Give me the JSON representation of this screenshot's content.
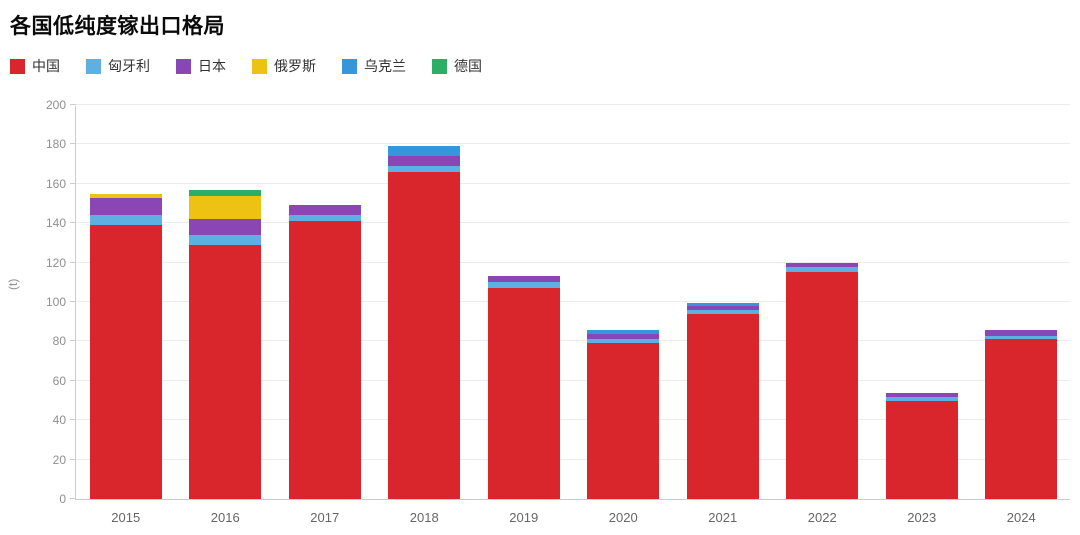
{
  "header": {
    "title": "各国低纯度镓出口格局"
  },
  "chart_data": {
    "type": "bar",
    "stacked": true,
    "title": "各国低纯度镓出口格局",
    "xlabel": "",
    "ylabel": "(t)",
    "ylim": [
      0,
      200
    ],
    "ytick_step": 20,
    "ytick_labels": [
      "0",
      "20",
      "40",
      "60",
      "80",
      "100",
      "120",
      "140",
      "160",
      "180",
      "200"
    ],
    "grid": true,
    "legend_position": "top-left",
    "categories": [
      "2015",
      "2016",
      "2017",
      "2018",
      "2019",
      "2020",
      "2021",
      "2022",
      "2023",
      "2024"
    ],
    "series": [
      {
        "name": "中国",
        "color": "#d8262c",
        "values": [
          139,
          129,
          141,
          166,
          107,
          79,
          94,
          115,
          50,
          81
        ]
      },
      {
        "name": "匈牙利",
        "color": "#5fb0e2",
        "values": [
          5,
          5,
          3,
          3,
          3,
          2,
          2,
          3,
          2,
          2
        ]
      },
      {
        "name": "日本",
        "color": "#8a46b4",
        "values": [
          9,
          8,
          5,
          5,
          3,
          3,
          2,
          2,
          2,
          3
        ]
      },
      {
        "name": "俄罗斯",
        "color": "#eec213",
        "values": [
          2,
          12,
          0,
          0,
          0,
          0,
          0,
          0,
          0,
          0
        ]
      },
      {
        "name": "乌克兰",
        "color": "#3596db",
        "values": [
          0,
          0,
          0,
          5,
          0,
          2,
          1.5,
          0,
          0,
          0
        ]
      },
      {
        "name": "德国",
        "color": "#2bae66",
        "values": [
          0,
          3,
          0,
          0,
          0,
          0,
          0,
          0,
          0,
          0
        ]
      }
    ],
    "totals": [
      155,
      157,
      149,
      179,
      113,
      86,
      99.5,
      120,
      54,
      86
    ]
  },
  "colors": {
    "grid": "#ececec",
    "axis": "#cccccc",
    "ytick_text": "#8f8f8f",
    "xtick_text": "#666666",
    "legend_text": "#333333",
    "title_text": "#0a0a0a"
  }
}
